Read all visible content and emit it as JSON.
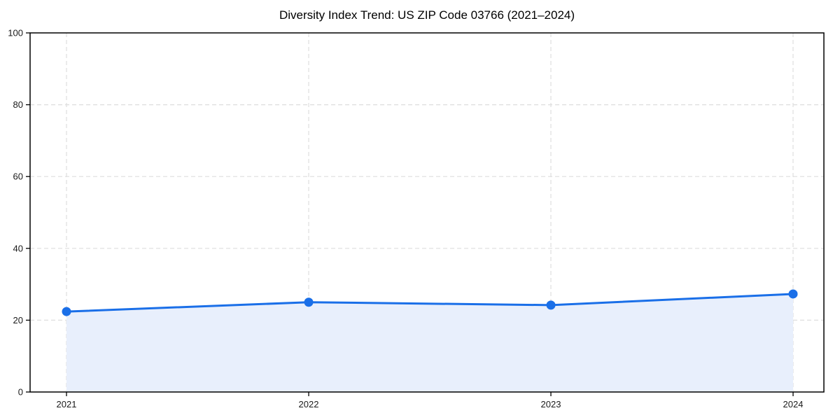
{
  "chart_data": {
    "type": "line",
    "title": "Diversity Index Trend: US ZIP Code 03766 (2021–2024)",
    "x": [
      "2021",
      "2022",
      "2023",
      "2024"
    ],
    "series": [
      {
        "name": "Diversity Index",
        "values": [
          22.4,
          25.0,
          24.2,
          27.3
        ]
      }
    ],
    "xlabel": "",
    "ylabel": "",
    "ylim": [
      0,
      100
    ],
    "yticks": [
      0,
      20,
      40,
      60,
      80,
      100
    ],
    "grid": "dashed",
    "legend": "none",
    "marker": "circle",
    "area_fill": true,
    "colors": {
      "line": "#1a6fe8",
      "marker": "#1a6fe8",
      "area": "#e8effc",
      "grid": "#dedede",
      "axis": "#000000",
      "tick_label": "#1a1a1a",
      "title": "#000000",
      "background": "#ffffff"
    }
  }
}
